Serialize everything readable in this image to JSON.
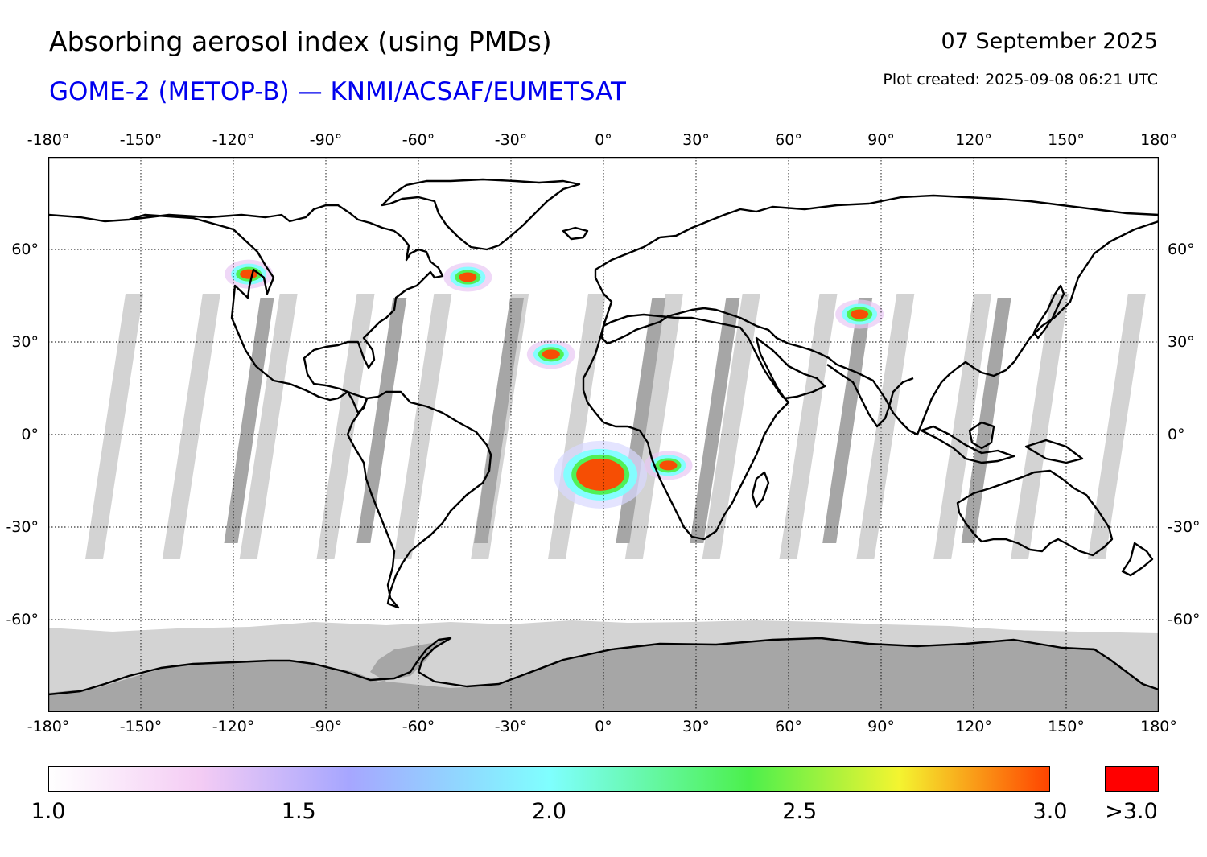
{
  "header": {
    "title": "Absorbing aerosol index (using PMDs)",
    "subtitle": "GOME-2 (METOP-B) — KNMI/ACSAF/EUMETSAT",
    "date": "07 September 2025",
    "created": "Plot created: 2025-09-08 06:21 UTC"
  },
  "colors": {
    "subtitle": "#0000ee",
    "swath_gap": "#d3d3d3",
    "overlap": "#a6a6a6",
    "coast": "#000000",
    "over_range": "#ff0000"
  },
  "map": {
    "projection": "equirectangular",
    "lon_range": [
      -180,
      180
    ],
    "lat_range": [
      -90,
      90
    ],
    "lon_ticks": [
      {
        "value": -180,
        "label": "-180°"
      },
      {
        "value": -150,
        "label": "-150°"
      },
      {
        "value": -120,
        "label": "-120°"
      },
      {
        "value": -90,
        "label": "-90°"
      },
      {
        "value": -60,
        "label": "-60°"
      },
      {
        "value": -30,
        "label": "-30°"
      },
      {
        "value": 0,
        "label": "0°"
      },
      {
        "value": 30,
        "label": "30°"
      },
      {
        "value": 60,
        "label": "60°"
      },
      {
        "value": 90,
        "label": "90°"
      },
      {
        "value": 120,
        "label": "120°"
      },
      {
        "value": 150,
        "label": "150°"
      },
      {
        "value": 180,
        "label": "180°"
      }
    ],
    "lat_ticks": [
      {
        "value": 60,
        "label": "60°"
      },
      {
        "value": 30,
        "label": "30°"
      },
      {
        "value": 0,
        "label": "0°"
      },
      {
        "value": -30,
        "label": "-30°"
      },
      {
        "value": -60,
        "label": "-60°"
      }
    ],
    "grid": "dotted",
    "aerosol_plumes": [
      {
        "region": "central Africa (Angola)",
        "lon": -1,
        "lat": -13,
        "level": "above 3.0"
      },
      {
        "region": "southern Africa",
        "lon": 21,
        "lat": -10,
        "level": "2.5-3.0"
      },
      {
        "region": "western Canada",
        "lon": -115,
        "lat": 52,
        "level": "2.5-3.0"
      },
      {
        "region": "Greenland south",
        "lon": -44,
        "lat": 51,
        "level": "2.5-3.0"
      },
      {
        "region": "central Asia",
        "lon": 83,
        "lat": 39,
        "level": "2.5-3.0"
      },
      {
        "region": "Mauritania coast",
        "lon": -17,
        "lat": 26,
        "level": "2.5-3.0"
      }
    ]
  },
  "colorbar": {
    "min": 1.0,
    "max": 3.0,
    "ticks": [
      {
        "value": 1.0,
        "label": "1.0"
      },
      {
        "value": 1.5,
        "label": "1.5"
      },
      {
        "value": 2.0,
        "label": "2.0"
      },
      {
        "value": 2.5,
        "label": "2.5"
      },
      {
        "value": 3.0,
        "label": "3.0"
      }
    ],
    "over_label": ">3.0",
    "gradient": [
      {
        "value": 1.0,
        "color": "#ffffff"
      },
      {
        "value": 1.3,
        "color": "#f4ccf4"
      },
      {
        "value": 1.6,
        "color": "#a6a6ff"
      },
      {
        "value": 2.0,
        "color": "#7fffff"
      },
      {
        "value": 2.4,
        "color": "#4cf04c"
      },
      {
        "value": 2.7,
        "color": "#f4f430"
      },
      {
        "value": 3.0,
        "color": "#ff4400"
      }
    ]
  }
}
